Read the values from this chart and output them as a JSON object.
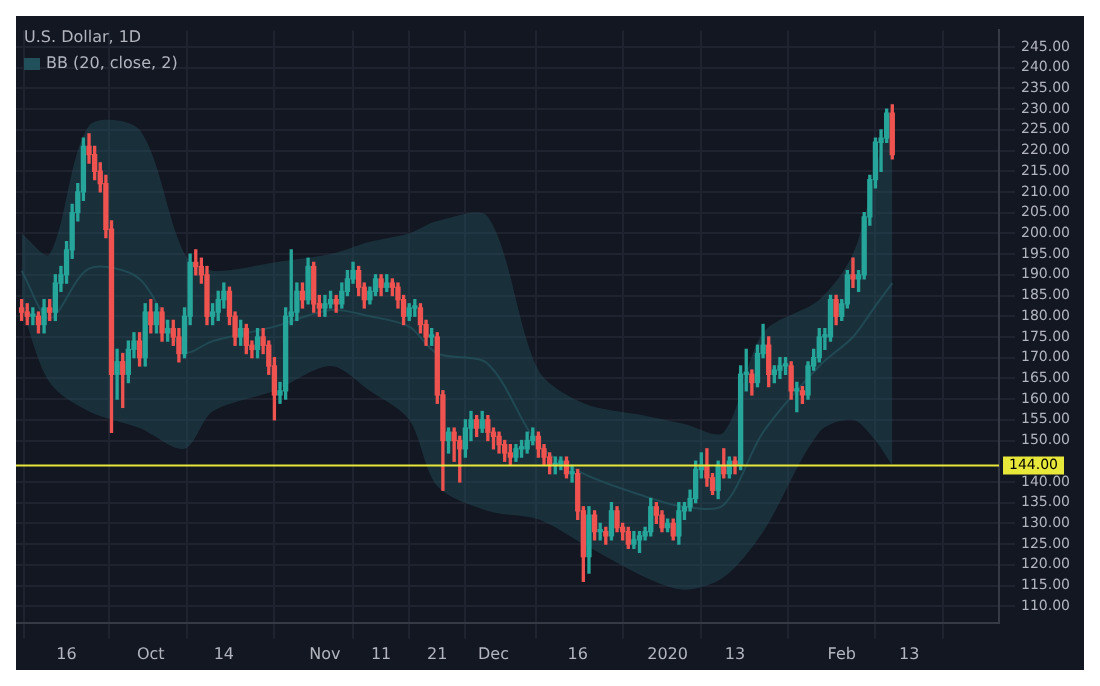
{
  "chart_data": {
    "type": "candlestick",
    "title": "U.S. Dollar, 1D",
    "x": [
      "2019-09-08",
      "2019-09-09",
      "2019-09-10",
      "2019-09-11",
      "2019-09-12",
      "2019-09-13",
      "2019-09-14",
      "2019-09-15",
      "2019-09-16",
      "2019-09-17",
      "2019-09-18",
      "2019-09-19",
      "2019-09-20",
      "2019-09-21",
      "2019-09-22",
      "2019-09-23",
      "2019-09-24",
      "2019-09-25",
      "2019-09-26",
      "2019-09-27",
      "2019-09-28",
      "2019-09-29",
      "2019-09-30",
      "2019-10-01",
      "2019-10-02",
      "2019-10-03",
      "2019-10-04",
      "2019-10-05",
      "2019-10-06",
      "2019-10-07",
      "2019-10-08",
      "2019-10-09",
      "2019-10-10",
      "2019-10-11",
      "2019-10-12",
      "2019-10-13",
      "2019-10-14",
      "2019-10-15",
      "2019-10-16",
      "2019-10-17",
      "2019-10-18",
      "2019-10-19",
      "2019-10-20",
      "2019-10-21",
      "2019-10-22",
      "2019-10-23",
      "2019-10-24",
      "2019-10-25",
      "2019-10-26",
      "2019-10-27",
      "2019-10-28",
      "2019-10-29",
      "2019-10-30",
      "2019-10-31",
      "2019-11-01",
      "2019-11-02",
      "2019-11-03",
      "2019-11-04",
      "2019-11-05",
      "2019-11-06",
      "2019-11-07",
      "2019-11-08",
      "2019-11-09",
      "2019-11-10",
      "2019-11-11",
      "2019-11-12",
      "2019-11-13",
      "2019-11-14",
      "2019-11-15",
      "2019-11-16",
      "2019-11-17",
      "2019-11-18",
      "2019-11-19",
      "2019-11-20",
      "2019-11-21",
      "2019-11-22",
      "2019-11-23",
      "2019-11-24",
      "2019-11-25",
      "2019-11-26",
      "2019-11-27",
      "2019-11-28",
      "2019-11-29",
      "2019-11-30",
      "2019-12-01",
      "2019-12-02",
      "2019-12-03",
      "2019-12-04",
      "2019-12-05",
      "2019-12-06",
      "2019-12-07",
      "2019-12-08",
      "2019-12-09",
      "2019-12-10",
      "2019-12-11",
      "2019-12-12",
      "2019-12-13",
      "2019-12-14",
      "2019-12-15",
      "2019-12-16",
      "2019-12-17",
      "2019-12-18",
      "2019-12-19",
      "2019-12-20",
      "2019-12-21",
      "2019-12-22",
      "2019-12-23",
      "2019-12-24",
      "2019-12-25",
      "2019-12-26",
      "2019-12-27",
      "2019-12-28",
      "2019-12-29",
      "2019-12-30",
      "2019-12-31",
      "2020-01-01",
      "2020-01-02",
      "2020-01-03",
      "2020-01-04",
      "2020-01-05",
      "2020-01-06",
      "2020-01-07",
      "2020-01-08",
      "2020-01-09",
      "2020-01-10",
      "2020-01-11",
      "2020-01-12",
      "2020-01-13",
      "2020-01-14",
      "2020-01-15",
      "2020-01-16",
      "2020-01-17",
      "2020-01-18",
      "2020-01-19",
      "2020-01-20",
      "2020-01-21",
      "2020-01-22",
      "2020-01-23",
      "2020-01-24",
      "2020-01-25",
      "2020-01-26",
      "2020-01-27",
      "2020-01-28",
      "2020-01-29",
      "2020-01-30",
      "2020-01-31",
      "2020-02-01",
      "2020-02-02",
      "2020-02-03",
      "2020-02-04",
      "2020-02-05",
      "2020-02-06",
      "2020-02-07",
      "2020-02-08",
      "2020-02-09",
      "2020-02-10"
    ],
    "ohlc": [
      [
        182,
        184,
        179,
        181
      ],
      [
        181,
        183,
        178,
        180
      ],
      [
        180,
        182,
        178,
        180
      ],
      [
        180,
        181,
        176,
        178
      ],
      [
        178,
        184,
        176,
        182
      ],
      [
        182,
        184,
        179,
        181
      ],
      [
        181,
        190,
        179,
        188
      ],
      [
        188,
        192,
        186,
        190
      ],
      [
        190,
        198,
        188,
        196
      ],
      [
        196,
        207,
        194,
        205
      ],
      [
        205,
        212,
        203,
        210
      ],
      [
        210,
        223,
        208,
        221
      ],
      [
        221,
        224,
        217,
        219
      ],
      [
        219,
        221,
        213,
        215
      ],
      [
        215,
        217,
        210,
        212
      ],
      [
        212,
        214,
        199,
        201
      ],
      [
        201,
        203,
        152,
        166
      ],
      [
        166,
        172,
        160,
        169
      ],
      [
        169,
        171,
        158,
        166
      ],
      [
        166,
        174,
        164,
        172
      ],
      [
        172,
        176,
        170,
        174
      ],
      [
        174,
        176,
        168,
        170
      ],
      [
        170,
        183,
        168,
        181
      ],
      [
        181,
        184,
        176,
        178
      ],
      [
        178,
        183,
        176,
        181
      ],
      [
        181,
        182,
        174,
        176
      ],
      [
        176,
        179,
        174,
        177
      ],
      [
        177,
        179,
        173,
        175
      ],
      [
        175,
        177,
        169,
        171
      ],
      [
        171,
        182,
        170,
        180
      ],
      [
        180,
        195,
        178,
        193
      ],
      [
        193,
        196,
        190,
        192
      ],
      [
        192,
        194,
        188,
        190
      ],
      [
        190,
        192,
        178,
        180
      ],
      [
        180,
        183,
        178,
        181
      ],
      [
        181,
        186,
        179,
        184
      ],
      [
        184,
        188,
        182,
        186
      ],
      [
        186,
        187,
        178,
        180
      ],
      [
        180,
        181,
        173,
        175
      ],
      [
        175,
        179,
        173,
        177
      ],
      [
        177,
        178,
        171,
        173
      ],
      [
        173,
        174,
        170,
        172
      ],
      [
        172,
        177,
        170,
        175
      ],
      [
        175,
        177,
        171,
        173
      ],
      [
        173,
        174,
        166,
        168
      ],
      [
        168,
        170,
        155,
        161
      ],
      [
        161,
        164,
        159,
        162
      ],
      [
        162,
        182,
        160,
        180
      ],
      [
        180,
        196,
        178,
        181
      ],
      [
        181,
        188,
        179,
        186
      ],
      [
        186,
        188,
        182,
        184
      ],
      [
        184,
        194,
        183,
        192
      ],
      [
        192,
        193,
        181,
        183
      ],
      [
        183,
        185,
        180,
        182
      ],
      [
        182,
        185,
        180,
        183
      ],
      [
        183,
        186,
        182,
        184
      ],
      [
        184,
        185,
        181,
        183
      ],
      [
        183,
        188,
        182,
        186
      ],
      [
        186,
        191,
        185,
        189
      ],
      [
        189,
        193,
        188,
        191
      ],
      [
        191,
        192,
        185,
        187
      ],
      [
        187,
        188,
        182,
        184
      ],
      [
        184,
        187,
        183,
        186
      ],
      [
        186,
        190,
        185,
        189
      ],
      [
        189,
        190,
        185,
        187
      ],
      [
        187,
        190,
        186,
        188
      ],
      [
        188,
        189,
        185,
        187
      ],
      [
        187,
        188,
        182,
        184
      ],
      [
        184,
        185,
        178,
        180
      ],
      [
        180,
        183,
        179,
        182
      ],
      [
        182,
        184,
        180,
        182
      ],
      [
        182,
        183,
        176,
        178
      ],
      [
        178,
        179,
        173,
        175
      ],
      [
        175,
        177,
        173,
        175
      ],
      [
        175,
        176,
        159,
        161
      ],
      [
        161,
        162,
        138,
        150
      ],
      [
        150,
        153,
        147,
        152
      ],
      [
        152,
        153,
        145,
        150
      ],
      [
        150,
        151,
        140,
        148
      ],
      [
        148,
        155,
        146,
        153
      ],
      [
        153,
        157,
        150,
        155
      ],
      [
        155,
        156,
        151,
        153
      ],
      [
        153,
        157,
        152,
        155
      ],
      [
        155,
        156,
        150,
        152
      ],
      [
        152,
        153,
        148,
        151
      ],
      [
        151,
        152,
        147,
        149
      ],
      [
        149,
        150,
        145,
        147
      ],
      [
        147,
        149,
        144,
        146
      ],
      [
        146,
        149,
        145,
        148
      ],
      [
        148,
        150,
        146,
        148
      ],
      [
        148,
        152,
        147,
        150
      ],
      [
        150,
        153,
        149,
        151
      ],
      [
        151,
        152,
        146,
        148
      ],
      [
        148,
        149,
        144,
        146
      ],
      [
        146,
        147,
        142,
        144
      ],
      [
        144,
        146,
        142,
        144
      ],
      [
        144,
        146,
        143,
        145
      ],
      [
        145,
        146,
        141,
        142
      ],
      [
        142,
        144,
        140,
        142
      ],
      [
        142,
        143,
        131,
        133
      ],
      [
        133,
        134,
        116,
        122
      ],
      [
        122,
        134,
        118,
        132
      ],
      [
        132,
        133,
        126,
        128
      ],
      [
        128,
        130,
        126,
        128
      ],
      [
        128,
        129,
        125,
        127
      ],
      [
        127,
        135,
        126,
        133
      ],
      [
        133,
        134,
        128,
        129
      ],
      [
        129,
        130,
        126,
        128
      ],
      [
        128,
        129,
        124,
        125
      ],
      [
        125,
        128,
        124,
        126
      ],
      [
        126,
        128,
        123,
        127
      ],
      [
        127,
        129,
        126,
        128
      ],
      [
        128,
        136,
        127,
        134
      ],
      [
        134,
        135,
        130,
        132
      ],
      [
        132,
        133,
        128,
        129
      ],
      [
        129,
        131,
        128,
        130
      ],
      [
        130,
        131,
        126,
        127
      ],
      [
        127,
        135,
        125,
        133
      ],
      [
        133,
        135,
        131,
        134
      ],
      [
        134,
        138,
        133,
        136
      ],
      [
        136,
        145,
        135,
        143
      ],
      [
        143,
        147,
        141,
        144
      ],
      [
        144,
        148,
        139,
        141
      ],
      [
        141,
        142,
        137,
        138
      ],
      [
        138,
        145,
        136,
        144
      ],
      [
        144,
        148,
        141,
        142
      ],
      [
        142,
        146,
        141,
        145
      ],
      [
        145,
        146,
        142,
        144
      ],
      [
        144,
        168,
        143,
        166
      ],
      [
        166,
        172,
        162,
        166
      ],
      [
        166,
        167,
        161,
        164
      ],
      [
        164,
        173,
        163,
        171
      ],
      [
        171,
        178,
        170,
        173
      ],
      [
        173,
        175,
        163,
        166
      ],
      [
        166,
        168,
        164,
        167
      ],
      [
        167,
        170,
        165,
        168
      ],
      [
        168,
        170,
        166,
        168
      ],
      [
        168,
        169,
        160,
        162
      ],
      [
        162,
        164,
        157,
        162
      ],
      [
        162,
        163,
        159,
        161
      ],
      [
        161,
        169,
        160,
        168
      ],
      [
        168,
        172,
        167,
        170
      ],
      [
        170,
        177,
        169,
        175
      ],
      [
        175,
        177,
        172,
        175
      ],
      [
        175,
        185,
        174,
        184
      ],
      [
        184,
        185,
        178,
        180
      ],
      [
        180,
        184,
        179,
        183
      ],
      [
        183,
        191,
        182,
        190
      ],
      [
        190,
        194,
        187,
        189
      ],
      [
        189,
        191,
        186,
        190
      ],
      [
        190,
        205,
        189,
        204
      ],
      [
        204,
        214,
        202,
        213
      ],
      [
        213,
        223,
        211,
        222
      ],
      [
        222,
        225,
        215,
        223
      ],
      [
        223,
        230,
        222,
        229
      ],
      [
        229,
        231,
        218,
        219
      ]
    ],
    "series": [
      {
        "name": "BB (20, close, 2)",
        "type": "line",
        "color": "#22505a",
        "x": [
          "2019-09-08",
          "2019-09-13",
          "2019-09-20",
          "2019-09-29",
          "2019-10-07",
          "2019-10-12",
          "2019-10-23",
          "2019-11-02",
          "2019-11-09",
          "2019-11-16",
          "2019-11-21",
          "2019-11-30",
          "2019-12-09",
          "2019-12-17",
          "2019-12-28",
          "2020-01-04",
          "2020-01-11",
          "2020-01-18",
          "2020-01-28",
          "2020-02-03",
          "2020-02-07",
          "2020-02-10"
        ],
        "values": [
          191,
          179.5,
          191.5,
          189,
          171.5,
          174,
          177.5,
          181.5,
          180,
          177.5,
          171,
          168.5,
          149,
          142,
          136.5,
          134,
          134.5,
          152,
          168,
          175,
          182.5,
          188
        ],
        "lower": [
          182,
          164,
          157,
          153,
          148,
          157,
          162,
          168,
          162,
          155,
          139,
          133,
          131,
          125,
          117,
          114,
          117,
          128,
          152,
          155,
          150,
          144
        ],
        "upper": [
          200,
          195,
          226,
          225,
          195,
          191,
          193,
          195,
          198,
          200,
          203,
          204,
          167,
          159,
          156,
          154,
          152,
          176,
          184,
          195,
          215,
          232
        ]
      }
    ],
    "xlim": [
      "2019-09-07",
      "2020-02-29"
    ],
    "xticks": [
      {
        "value": "2019-09-16",
        "label": "16"
      },
      {
        "value": "2019-10-01",
        "label": "Oct"
      },
      {
        "value": "2019-10-14",
        "label": "14"
      },
      {
        "value": "2019-11-01",
        "label": "Nov"
      },
      {
        "value": "2019-11-11",
        "label": "11"
      },
      {
        "value": "2019-11-21",
        "label": "21"
      },
      {
        "value": "2019-12-01",
        "label": "Dec"
      },
      {
        "value": "2019-12-16",
        "label": "16"
      },
      {
        "value": "2020-01-01",
        "label": "2020"
      },
      {
        "value": "2020-01-13",
        "label": "13"
      },
      {
        "value": "2020-02-01",
        "label": "Feb"
      },
      {
        "value": "2020-02-13",
        "label": "13"
      }
    ],
    "ylim": [
      106,
      249
    ],
    "yticks": [
      {
        "value": 110,
        "label": "110.00"
      },
      {
        "value": 115,
        "label": "115.00"
      },
      {
        "value": 120,
        "label": "120.00"
      },
      {
        "value": 125,
        "label": "125.00"
      },
      {
        "value": 130,
        "label": "130.00"
      },
      {
        "value": 135,
        "label": "135.00"
      },
      {
        "value": 140,
        "label": "140.00"
      },
      {
        "value": 150,
        "label": "150.00"
      },
      {
        "value": 155,
        "label": "155.00"
      },
      {
        "value": 160,
        "label": "160.00"
      },
      {
        "value": 165,
        "label": "165.00"
      },
      {
        "value": 170,
        "label": "170.00"
      },
      {
        "value": 175,
        "label": "175.00"
      },
      {
        "value": 180,
        "label": "180.00"
      },
      {
        "value": 185,
        "label": "185.00"
      },
      {
        "value": 190,
        "label": "190.00"
      },
      {
        "value": 195,
        "label": "195.00"
      },
      {
        "value": 200,
        "label": "200.00"
      },
      {
        "value": 205,
        "label": "205.00"
      },
      {
        "value": 210,
        "label": "210.00"
      },
      {
        "value": 215,
        "label": "215.00"
      },
      {
        "value": 220,
        "label": "220.00"
      },
      {
        "value": 225,
        "label": "225.00"
      },
      {
        "value": 230,
        "label": "230.00"
      },
      {
        "value": 235,
        "label": "235.00"
      },
      {
        "value": 240,
        "label": "240.00"
      },
      {
        "value": 245,
        "label": "245.00"
      }
    ],
    "ref_lines": [
      {
        "axis": "y",
        "value": 144,
        "label": "144.00",
        "color": "#e8e83a"
      }
    ],
    "grid": true,
    "legend": "top left"
  }
}
